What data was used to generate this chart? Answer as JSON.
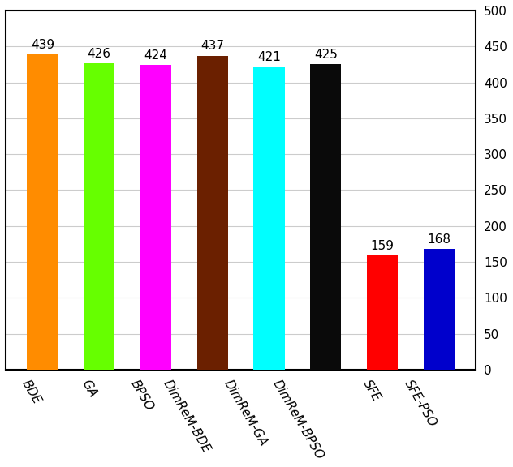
{
  "categories": [
    "BDE",
    "GA",
    "BPSO",
    "DimReM-BDE",
    "DimReM-GA",
    "DimReM-BPSO",
    "SFE",
    "SFE-PSO"
  ],
  "values": [
    439,
    426,
    424,
    437,
    421,
    425,
    159,
    168
  ],
  "bar_colors": [
    "#FF8C00",
    "#66FF00",
    "#FF00FF",
    "#6B2000",
    "#00FFFF",
    "#0A0A0A",
    "#FF0000",
    "#0000CC"
  ],
  "ylim": [
    0,
    500
  ],
  "yticks": [
    0,
    50,
    100,
    150,
    200,
    250,
    300,
    350,
    400,
    450,
    500
  ],
  "label_fontsize": 11,
  "tick_fontsize": 11,
  "value_fontsize": 11,
  "background_color": "#ffffff",
  "bar_width": 0.55,
  "grid_color": "#CCCCCC",
  "border_color": "#000000",
  "border_linewidth": 1.5,
  "xlabel_rotation": -60
}
